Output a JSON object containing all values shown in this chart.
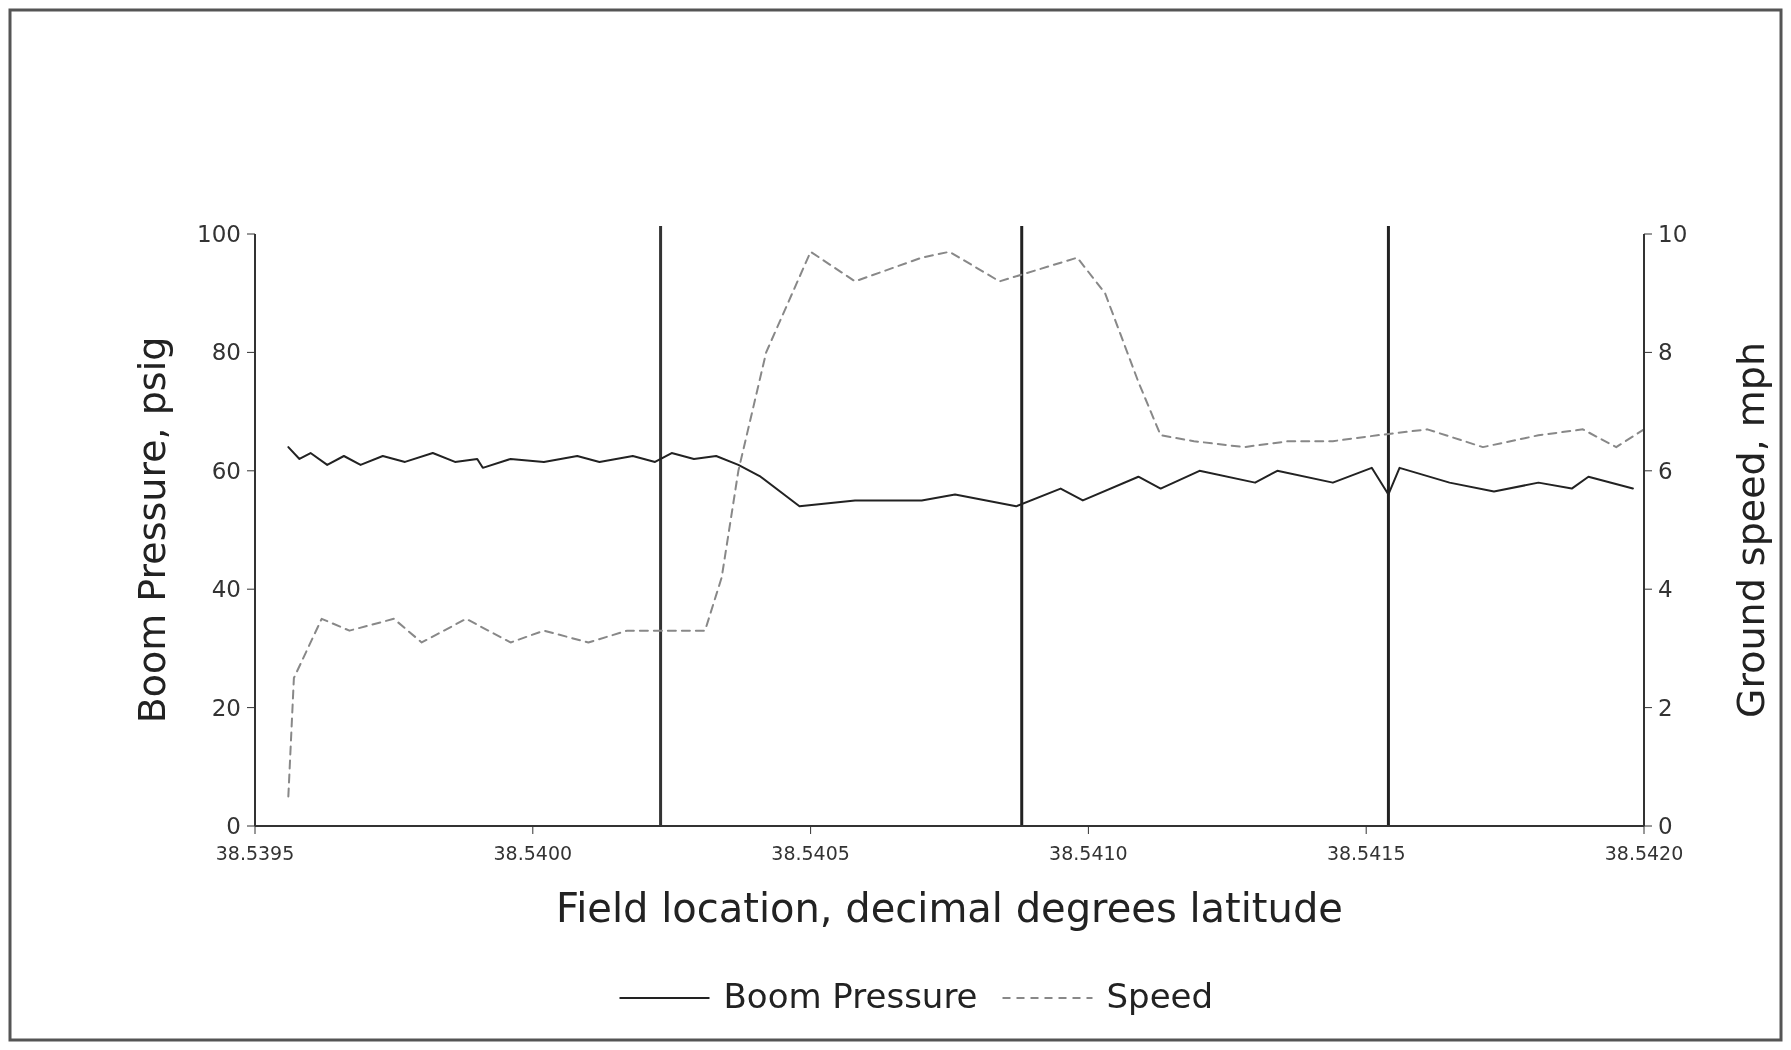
{
  "chart_data": {
    "type": "line",
    "xlabel": "Field location, decimal degrees  latitude",
    "ylabel": "Boom Pressure, psig",
    "y2label": "Ground speed, mph",
    "xlim": [
      38.5395,
      38.542
    ],
    "xticks": [
      {
        "value": 38.5395,
        "label": "38.5395"
      },
      {
        "value": 38.54,
        "label": "38.5400"
      },
      {
        "value": 38.5405,
        "label": "38.5405"
      },
      {
        "value": 38.541,
        "label": "38.5410"
      },
      {
        "value": 38.5415,
        "label": "38.5415"
      },
      {
        "value": 38.542,
        "label": "38.5420"
      }
    ],
    "ylim": [
      0,
      100
    ],
    "yticks": [
      0,
      20,
      40,
      60,
      80,
      100
    ],
    "y2lim": [
      0,
      10
    ],
    "y2ticks": [
      0,
      2,
      4,
      6,
      8,
      10
    ],
    "grid": false,
    "legend": "bottom",
    "series": [
      {
        "name": "Boom Pressure",
        "color": "#222222",
        "line_style": "solid",
        "x": [
          38.53956,
          38.53958,
          38.5396,
          38.53963,
          38.53966,
          38.53969,
          38.53973,
          38.53977,
          38.53982,
          38.53986,
          38.5399,
          38.53991,
          38.53996,
          38.54002,
          38.54008,
          38.54012,
          38.54018,
          38.54022,
          38.54025,
          38.54029,
          38.54033,
          38.54037,
          38.54041,
          38.54048,
          38.54058,
          38.5407,
          38.54076,
          38.54087,
          38.54095,
          38.54099,
          38.54109,
          38.54113,
          38.5412,
          38.5413,
          38.54134,
          38.54144,
          38.54151,
          38.54154,
          38.54156,
          38.54165,
          38.54173,
          38.54181,
          38.54187,
          38.5419,
          38.54198
        ],
        "values": [
          64,
          62,
          63,
          61,
          62.5,
          61,
          62.5,
          61.5,
          63,
          61.5,
          62,
          60.5,
          62,
          61.5,
          62.5,
          61.5,
          62.5,
          61.5,
          63,
          62,
          62.5,
          61,
          59,
          54,
          55,
          55,
          56,
          54,
          57,
          55,
          59,
          57,
          60,
          58,
          60,
          58,
          60.5,
          56,
          60.5,
          58,
          56.5,
          58,
          57,
          59,
          57
        ]
      },
      {
        "name": "Speed",
        "color": "#888888",
        "line_style": "dashed",
        "axis": "y2",
        "x": [
          38.53956,
          38.53957,
          38.53962,
          38.53967,
          38.53975,
          38.5398,
          38.53988,
          38.53996,
          38.54002,
          38.5401,
          38.54017,
          38.54031,
          38.54034,
          38.54037,
          38.54042,
          38.5405,
          38.54058,
          38.5407,
          38.54075,
          38.54084,
          38.54091,
          38.54098,
          38.54103,
          38.54109,
          38.54113,
          38.54119,
          38.54128,
          38.54136,
          38.54144,
          38.54152,
          38.54161,
          38.54171,
          38.54181,
          38.54189,
          38.54195,
          38.542
        ],
        "values": [
          0.5,
          2.5,
          3.5,
          3.3,
          3.5,
          3.1,
          3.5,
          3.1,
          3.3,
          3.1,
          3.3,
          3.3,
          4.2,
          6,
          8,
          9.7,
          9.2,
          9.6,
          9.7,
          9.2,
          9.4,
          9.6,
          9,
          7.5,
          6.6,
          6.5,
          6.4,
          6.5,
          6.5,
          6.6,
          6.7,
          6.4,
          6.6,
          6.7,
          6.4,
          6.7
        ]
      }
    ],
    "ref_lines": [
      {
        "axis": "x",
        "value": 38.54023,
        "color": "#333333"
      },
      {
        "axis": "x",
        "value": 38.54088,
        "color": "#222222"
      },
      {
        "axis": "x",
        "value": 38.54154,
        "color": "#222222"
      }
    ]
  }
}
